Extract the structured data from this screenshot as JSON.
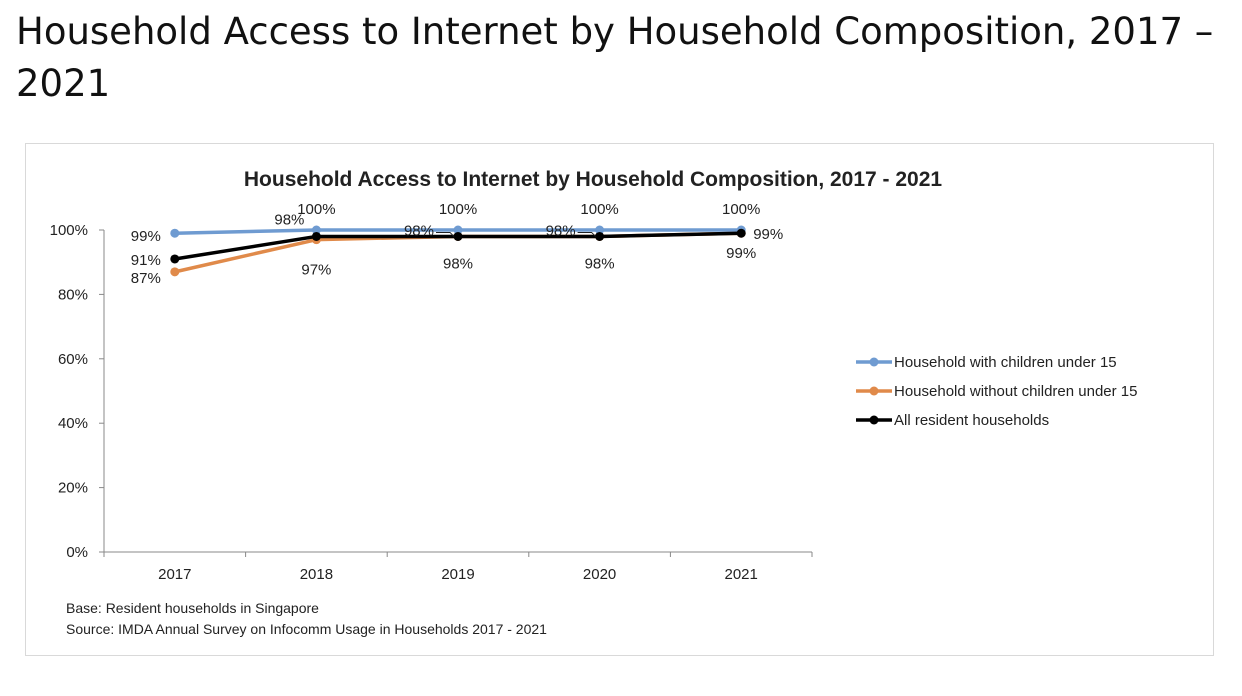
{
  "page": {
    "heading": "Household Access to Internet by Household Composition, 2017 – 2021"
  },
  "chart_data": {
    "type": "line",
    "title": "Household Access to Internet by Household Composition, 2017 - 2021",
    "xlabel": "",
    "ylabel": "",
    "categories": [
      "2017",
      "2018",
      "2019",
      "2020",
      "2021"
    ],
    "ylim": [
      0,
      100
    ],
    "yticks": [
      "0%",
      "20%",
      "40%",
      "60%",
      "80%",
      "100%"
    ],
    "grid": false,
    "legend_position": "right",
    "series": [
      {
        "name": "Household with children under 15",
        "values": [
          99,
          100,
          100,
          100,
          100
        ],
        "labels": [
          "99%",
          "100%",
          "100%",
          "100%",
          "100%"
        ],
        "color": "#6f9bd1"
      },
      {
        "name": "Household without children under 15",
        "values": [
          87,
          97,
          98,
          98,
          99
        ],
        "labels": [
          "87%",
          "97%",
          "98%",
          "98%",
          "99%"
        ],
        "color": "#e08a4a"
      },
      {
        "name": "All resident households",
        "values": [
          91,
          98,
          98,
          98,
          99
        ],
        "labels": [
          "91%",
          "98%",
          "98%",
          "98%",
          "99%"
        ],
        "color": "#000000"
      }
    ],
    "notes": [
      "Base: Resident households in Singapore",
      "Source: IMDA Annual Survey on Infocomm Usage in Households 2017 - 2021"
    ]
  }
}
